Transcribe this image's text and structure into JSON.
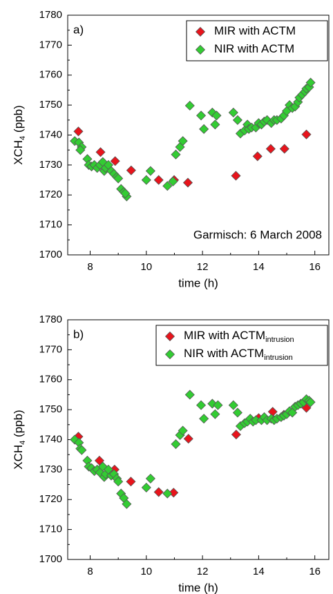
{
  "chart_data": [
    {
      "type": "scatter",
      "panel_label": "a)",
      "annotation": "Garmisch: 6 March 2008",
      "xlabel": "time (h)",
      "ylabel": "XCH",
      "ylabel_sub": "4",
      "ylabel_tail": " (ppb)",
      "xlim": [
        7.2,
        16.5
      ],
      "ylim": [
        1700,
        1780
      ],
      "xticks": [
        8,
        10,
        12,
        14,
        16
      ],
      "xminor": [
        9,
        11,
        13,
        15
      ],
      "yticks": [
        1700,
        1710,
        1720,
        1730,
        1740,
        1750,
        1760,
        1770,
        1780
      ],
      "yminor": [
        1705,
        1715,
        1725,
        1735,
        1745,
        1755,
        1765,
        1775
      ],
      "legend": "upper right",
      "series": [
        {
          "name": "MIR with ACTM",
          "color": "#e8141c",
          "x": [
            7.58,
            8.37,
            8.89,
            9.46,
            10.44,
            10.99,
            11.48,
            13.19,
            13.96,
            14.43,
            14.92,
            15.7
          ],
          "values": [
            1741.2,
            1734.3,
            1731.3,
            1728.2,
            1725.0,
            1725.0,
            1724.1,
            1726.4,
            1732.9,
            1735.4,
            1735.4,
            1740.2
          ]
        },
        {
          "name": "NIR with ACTM",
          "color": "#33cc33",
          "x": [
            7.45,
            7.6,
            7.7,
            7.65,
            7.9,
            7.95,
            8.05,
            8.15,
            8.25,
            8.35,
            8.45,
            8.5,
            8.55,
            8.65,
            8.75,
            8.85,
            8.95,
            9.0,
            9.1,
            9.2,
            9.3,
            9.25,
            10.0,
            10.15,
            10.75,
            10.95,
            11.05,
            11.2,
            11.3,
            11.55,
            11.95,
            12.05,
            12.35,
            12.45,
            12.5,
            13.1,
            13.25,
            13.35,
            13.5,
            13.6,
            13.65,
            13.75,
            13.9,
            14.0,
            14.1,
            14.2,
            14.3,
            14.45,
            14.55,
            14.65,
            14.8,
            14.9,
            15.0,
            15.1,
            15.2,
            15.3,
            15.4,
            15.45,
            15.55,
            15.65,
            15.7,
            15.8,
            15.85
          ],
          "values": [
            1738,
            1737.5,
            1736,
            1735,
            1732,
            1730,
            1729.5,
            1730,
            1729,
            1730,
            1731,
            1728,
            1729,
            1730,
            1728,
            1727,
            1726,
            1725.5,
            1722,
            1721,
            1719.5,
            1720.5,
            1725,
            1728,
            1723,
            1724.5,
            1733.5,
            1736,
            1738,
            1749.8,
            1746.5,
            1742,
            1747.5,
            1743.5,
            1746.5,
            1747.5,
            1745,
            1740.5,
            1741.5,
            1743.5,
            1742,
            1742.5,
            1742.5,
            1744,
            1743.5,
            1744.5,
            1745,
            1744,
            1745,
            1745,
            1745.5,
            1746.5,
            1748,
            1750,
            1749,
            1749.5,
            1751,
            1752.5,
            1753.5,
            1754.5,
            1755.5,
            1756,
            1757.5
          ]
        }
      ]
    },
    {
      "type": "scatter",
      "panel_label": "b)",
      "xlabel": "time (h)",
      "ylabel": "XCH",
      "ylabel_sub": "4",
      "ylabel_tail": " (ppb)",
      "xlim": [
        7.2,
        16.5
      ],
      "ylim": [
        1700,
        1780
      ],
      "xticks": [
        8,
        10,
        12,
        14,
        16
      ],
      "xminor": [
        9,
        11,
        13,
        15
      ],
      "yticks": [
        1700,
        1710,
        1720,
        1730,
        1740,
        1750,
        1760,
        1770,
        1780
      ],
      "yminor": [
        1705,
        1715,
        1725,
        1735,
        1745,
        1755,
        1765,
        1775
      ],
      "legend": "upper right",
      "series": [
        {
          "name": "MIR with ACTM",
          "name_sub": "intrusion",
          "color": "#e8141c",
          "x": [
            7.58,
            8.33,
            8.87,
            9.45,
            10.44,
            10.97,
            11.5,
            13.2,
            14.0,
            14.5,
            14.9,
            15.7
          ],
          "values": [
            1741,
            1733,
            1730,
            1726,
            1722.5,
            1722.3,
            1740.3,
            1741.7,
            1747.2,
            1749.3,
            1748.3,
            1750.6
          ]
        },
        {
          "name": "NIR with ACTM",
          "name_sub": "intrusion",
          "color": "#33cc33",
          "x": [
            7.45,
            7.6,
            7.65,
            7.7,
            7.9,
            7.95,
            8.05,
            8.15,
            8.25,
            8.35,
            8.45,
            8.5,
            8.55,
            8.65,
            8.75,
            8.85,
            8.95,
            9.0,
            9.1,
            9.2,
            9.3,
            10.0,
            10.15,
            10.75,
            11.05,
            11.2,
            11.3,
            11.55,
            11.95,
            12.05,
            12.35,
            12.45,
            12.55,
            13.1,
            13.25,
            13.35,
            13.5,
            13.6,
            13.7,
            13.8,
            13.9,
            14.1,
            14.2,
            14.3,
            14.45,
            14.55,
            14.65,
            14.8,
            14.9,
            15.0,
            15.1,
            15.2,
            15.3,
            15.4,
            15.5,
            15.6,
            15.7,
            15.8,
            15.85
          ],
          "values": [
            1740,
            1739,
            1737,
            1736.5,
            1733,
            1731,
            1730.5,
            1729.5,
            1730,
            1729,
            1731,
            1727.5,
            1728.5,
            1730,
            1728,
            1728.5,
            1727,
            1726,
            1722,
            1720.5,
            1718.5,
            1724,
            1727,
            1722,
            1738.5,
            1741.5,
            1743,
            1755,
            1751.5,
            1747,
            1752,
            1748.5,
            1751.5,
            1751.5,
            1749,
            1744.5,
            1745.5,
            1746,
            1747,
            1746,
            1746.5,
            1746.5,
            1747.5,
            1746.5,
            1747,
            1746.5,
            1747,
            1747.5,
            1748,
            1748.5,
            1749.5,
            1749,
            1751,
            1751.5,
            1752,
            1752.5,
            1753.5,
            1753,
            1752.5
          ]
        }
      ]
    }
  ]
}
